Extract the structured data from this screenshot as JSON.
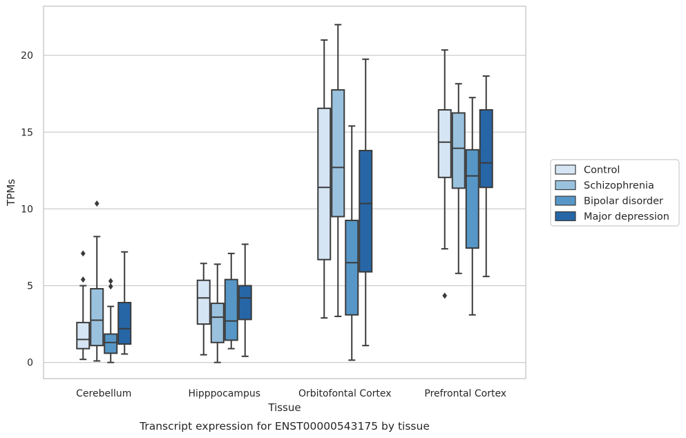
{
  "chart_data": {
    "type": "boxplot",
    "title": "",
    "caption": "Transcript expression for ENST00000543175 by tissue",
    "xlabel": "Tissue",
    "ylabel": "TPMs",
    "ylim": [
      -1.05,
      23.2
    ],
    "yticks": [
      0,
      5,
      10,
      15,
      20
    ],
    "grid": "horizontal",
    "legend_position": "right",
    "categories": [
      "Cerebellum",
      "Hipppocampus",
      "Orbitofontal Cortex",
      "Prefrontal Cortex"
    ],
    "series": [
      {
        "name": "Control",
        "color": "#d6e5f4",
        "boxes": [
          {
            "whislo": 0.2,
            "q1": 0.9,
            "med": 1.5,
            "q3": 2.6,
            "whishi": 5.0,
            "fliers": [
              5.4,
              7.1
            ]
          },
          {
            "whislo": 0.5,
            "q1": 2.5,
            "med": 4.2,
            "q3": 5.35,
            "whishi": 6.45,
            "fliers": []
          },
          {
            "whislo": 2.9,
            "q1": 6.7,
            "med": 11.4,
            "q3": 16.55,
            "whishi": 21.0,
            "fliers": []
          },
          {
            "whislo": 7.4,
            "q1": 12.05,
            "med": 14.35,
            "q3": 16.45,
            "whishi": 20.35,
            "fliers": [
              4.35
            ]
          }
        ]
      },
      {
        "name": "Schizophrenia",
        "color": "#9ac2df",
        "boxes": [
          {
            "whislo": 0.1,
            "q1": 1.1,
            "med": 2.75,
            "q3": 4.8,
            "whishi": 8.2,
            "fliers": [
              10.35
            ]
          },
          {
            "whislo": 0.0,
            "q1": 1.3,
            "med": 2.95,
            "q3": 3.85,
            "whishi": 6.4,
            "fliers": []
          },
          {
            "whislo": 3.0,
            "q1": 9.5,
            "med": 12.7,
            "q3": 17.75,
            "whishi": 22.0,
            "fliers": []
          },
          {
            "whislo": 5.8,
            "q1": 11.35,
            "med": 13.95,
            "q3": 16.25,
            "whishi": 18.15,
            "fliers": []
          }
        ]
      },
      {
        "name": "Bipolar disorder",
        "color": "#5697c7",
        "boxes": [
          {
            "whislo": 0.0,
            "q1": 0.6,
            "med": 1.3,
            "q3": 1.85,
            "whishi": 3.65,
            "fliers": [
              4.95,
              5.3
            ]
          },
          {
            "whislo": 0.9,
            "q1": 1.45,
            "med": 2.7,
            "q3": 5.4,
            "whishi": 7.1,
            "fliers": []
          },
          {
            "whislo": 0.15,
            "q1": 3.1,
            "med": 6.5,
            "q3": 9.25,
            "whishi": 15.4,
            "fliers": []
          },
          {
            "whislo": 3.1,
            "q1": 7.45,
            "med": 12.15,
            "q3": 13.85,
            "whishi": 17.25,
            "fliers": []
          }
        ]
      },
      {
        "name": "Major depression",
        "color": "#2766a6",
        "boxes": [
          {
            "whislo": 0.55,
            "q1": 1.2,
            "med": 2.2,
            "q3": 3.9,
            "whishi": 7.2,
            "fliers": []
          },
          {
            "whislo": 0.4,
            "q1": 2.8,
            "med": 4.2,
            "q3": 5.0,
            "whishi": 7.7,
            "fliers": []
          },
          {
            "whislo": 1.1,
            "q1": 5.9,
            "med": 10.35,
            "q3": 13.8,
            "whishi": 19.75,
            "fliers": []
          },
          {
            "whislo": 5.6,
            "q1": 11.4,
            "med": 13.0,
            "q3": 16.45,
            "whishi": 18.65,
            "fliers": []
          }
        ]
      }
    ]
  },
  "colors": {
    "grid": "#cccccc",
    "frame": "#cccccc",
    "box_edge": "#3a3a3a",
    "legend_border": "#cccccc"
  }
}
